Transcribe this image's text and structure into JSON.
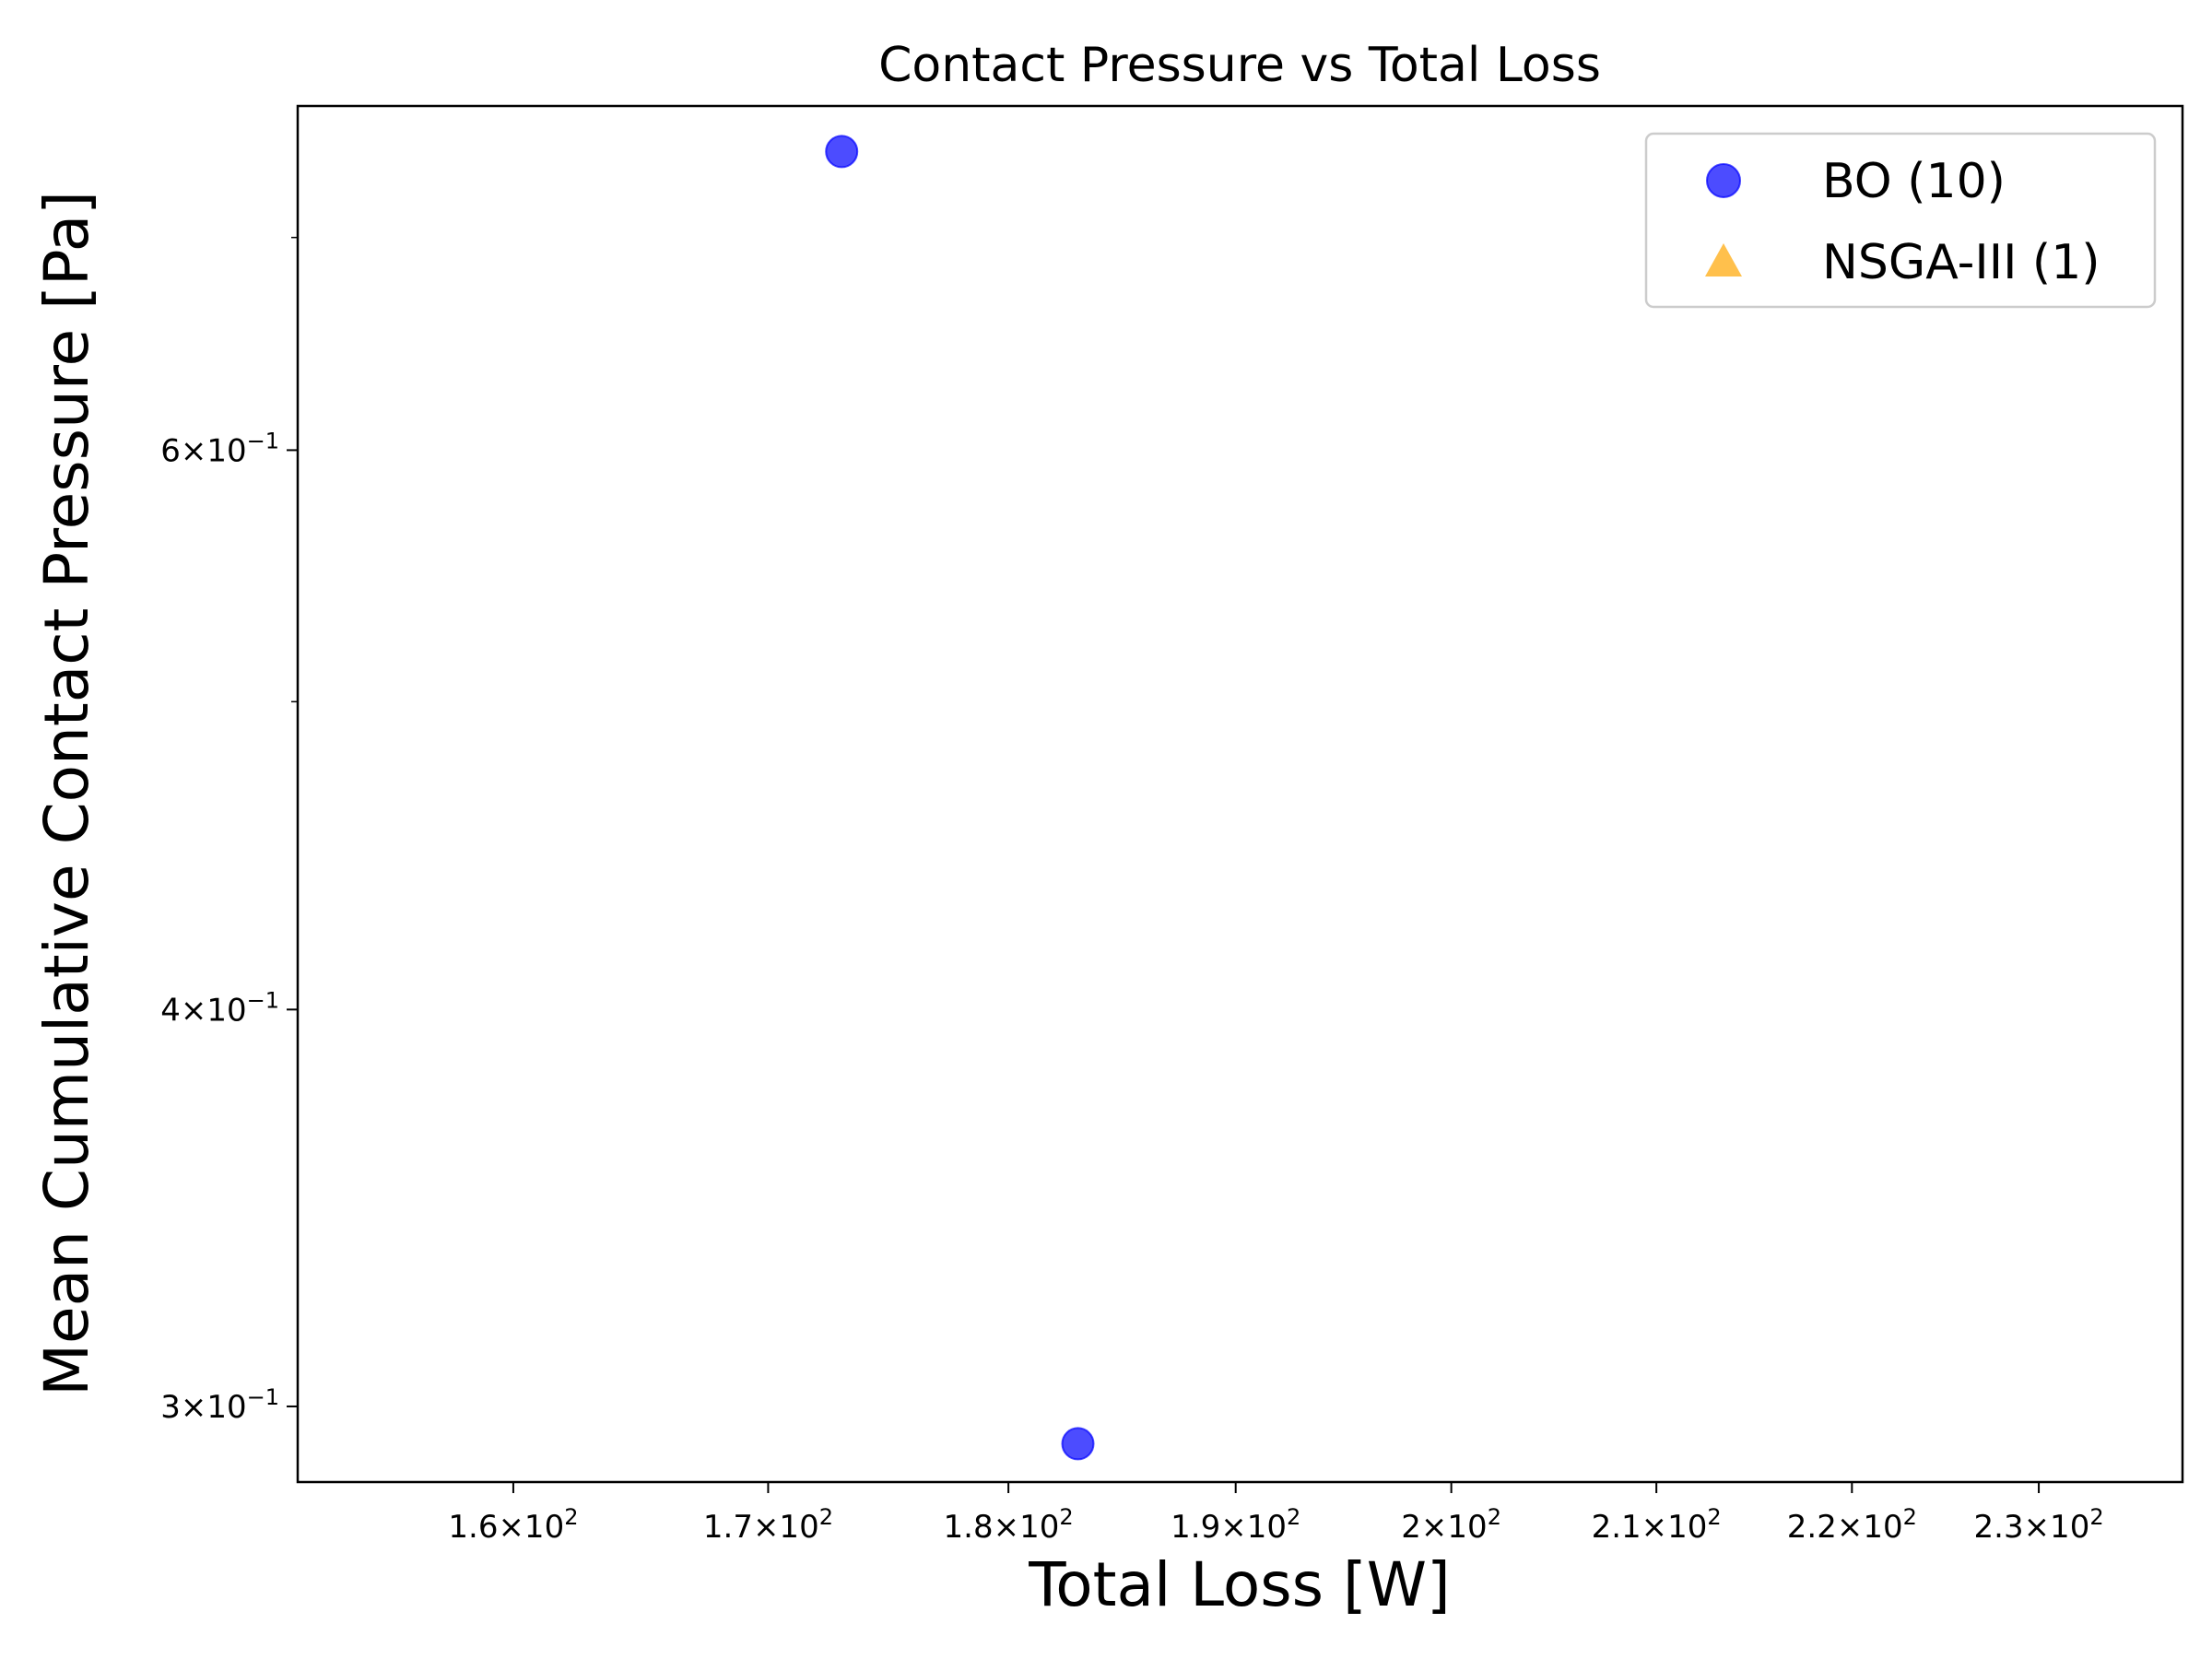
{
  "chart_data": {
    "type": "scatter",
    "title": "Contact Pressure vs Total Loss",
    "xlabel": "Total Loss [W]",
    "ylabel": "Mean Cumulative Contact Pressure [Pa]",
    "xscale": "log",
    "yscale": "log",
    "xlim": [
      152,
      238
    ],
    "ylim": [
      0.284,
      0.77
    ],
    "x_ticks": [
      {
        "value": 160,
        "mantissa": "1.6",
        "base": "10",
        "exp": "2"
      },
      {
        "value": 170,
        "mantissa": "1.7",
        "base": "10",
        "exp": "2"
      },
      {
        "value": 180,
        "mantissa": "1.8",
        "base": "10",
        "exp": "2"
      },
      {
        "value": 190,
        "mantissa": "1.9",
        "base": "10",
        "exp": "2"
      },
      {
        "value": 200,
        "mantissa": "2",
        "base": "10",
        "exp": "2"
      },
      {
        "value": 210,
        "mantissa": "2.1",
        "base": "10",
        "exp": "2"
      },
      {
        "value": 220,
        "mantissa": "2.2",
        "base": "10",
        "exp": "2"
      },
      {
        "value": 230,
        "mantissa": "2.3",
        "base": "10",
        "exp": "2"
      }
    ],
    "y_ticks": [
      {
        "value": 0.3,
        "mantissa": "3",
        "base": "10",
        "exp": "−1"
      },
      {
        "value": 0.4,
        "mantissa": "4",
        "base": "10",
        "exp": "−1"
      },
      {
        "value": 0.6,
        "mantissa": "6",
        "base": "10",
        "exp": "−1"
      }
    ],
    "y_minor_ticks": [
      0.5,
      0.7
    ],
    "series": [
      {
        "name": "BO (10)",
        "marker": "circle",
        "color": "#0000ff",
        "points": [
          {
            "x": 173.0,
            "y": 0.745
          },
          {
            "x": 183.0,
            "y": 0.292
          }
        ]
      },
      {
        "name": "NSGA-III (1)",
        "marker": "triangle",
        "color": "#ffa500",
        "points": []
      }
    ],
    "legend_position": "top-right",
    "grid": false
  }
}
